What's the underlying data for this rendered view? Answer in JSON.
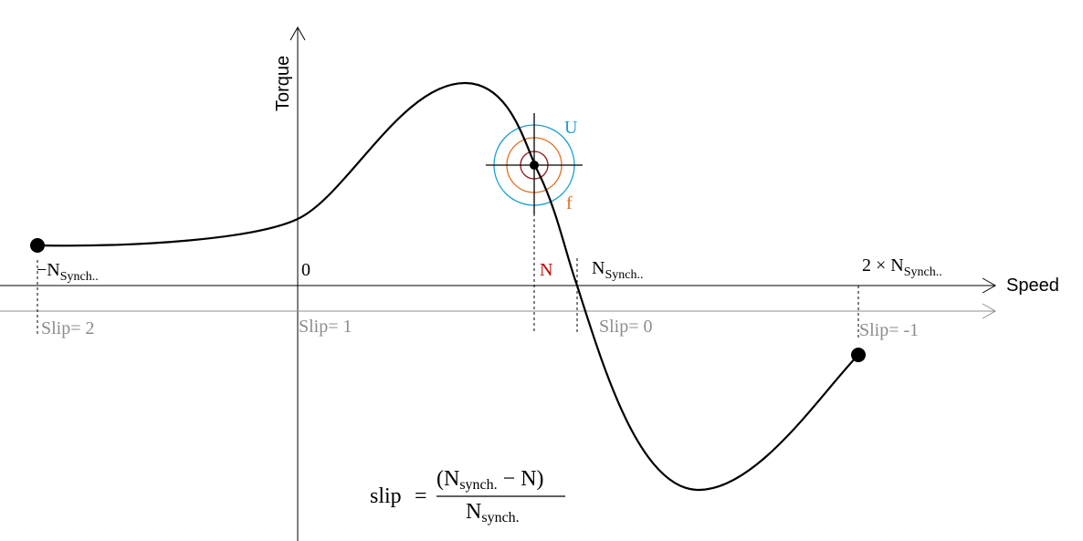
{
  "axes": {
    "y_label": "Torque",
    "x_label": "Speed"
  },
  "speed_labels": [
    {
      "main": "−N",
      "sub": "Synch.."
    },
    {
      "main": "0"
    },
    {
      "main": "N"
    },
    {
      "main": "N",
      "sub": "Synch.."
    },
    {
      "main": "2 × N",
      "sub": "Synch.."
    }
  ],
  "slip_labels": [
    "Slip= 2",
    "Slip= 1",
    "Slip= 0",
    "Slip= -1"
  ],
  "circle_labels": {
    "u": "U",
    "f": "f"
  },
  "formula": {
    "lhs": "slip",
    "eq": "=",
    "num_open": "(N",
    "num_sub": "synch.",
    "num_rest": " − N)",
    "den": "N",
    "den_sub": "synch."
  }
}
